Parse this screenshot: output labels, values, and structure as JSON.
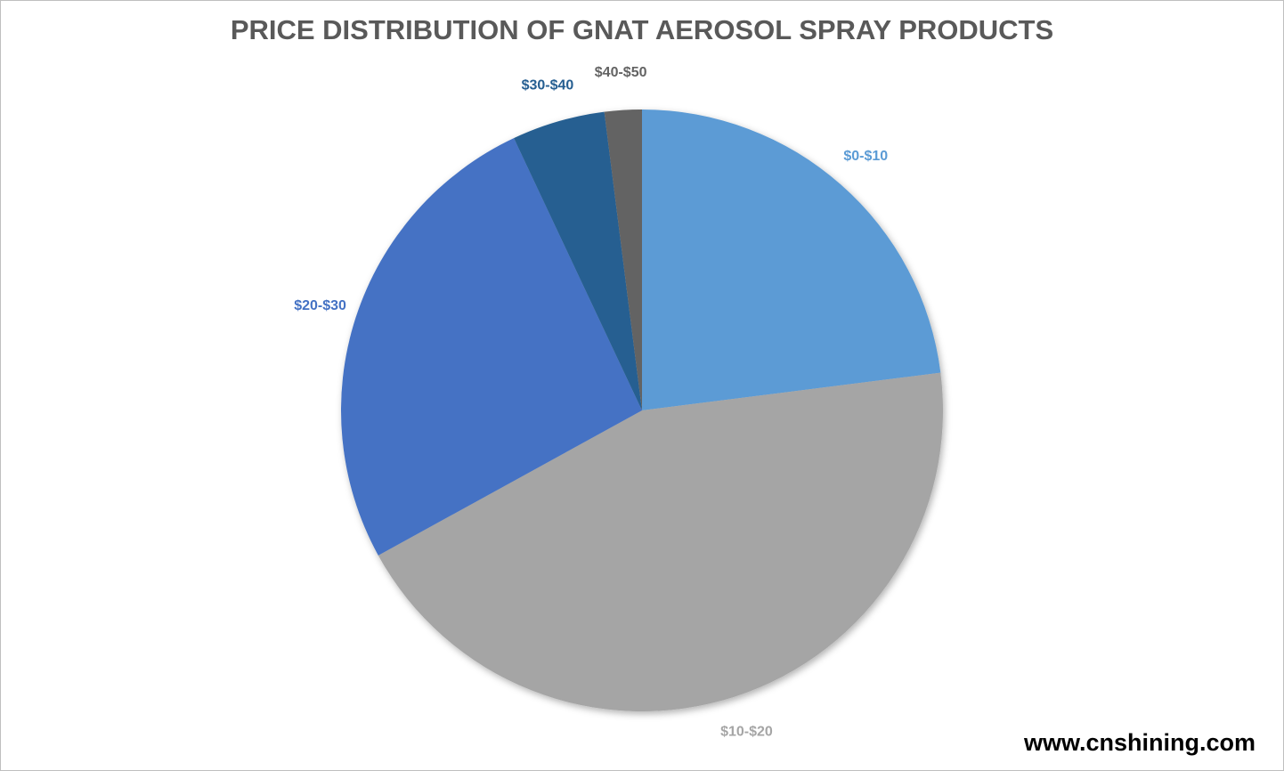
{
  "chart_data": {
    "type": "pie",
    "title": "PRICE DISTRIBUTION OF GNAT AEROSOL SPRAY PRODUCTS",
    "categories": [
      "$0-$10",
      "$10-$20",
      "$20-$30",
      "$30-$40",
      "$40-$50"
    ],
    "values": [
      23,
      44,
      26,
      5,
      2
    ],
    "colors": [
      "#5b9bd5",
      "#a5a5a5",
      "#4472c4",
      "#255e91",
      "#636363"
    ],
    "watermark": "www.cnshining.com"
  }
}
